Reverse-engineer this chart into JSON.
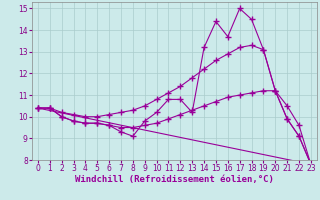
{
  "background_color": "#cceaea",
  "grid_color": "#aacccc",
  "line_color": "#990099",
  "xlim": [
    -0.5,
    23.5
  ],
  "ylim": [
    8,
    15.3
  ],
  "yticks": [
    8,
    9,
    10,
    11,
    12,
    13,
    14,
    15
  ],
  "xticks": [
    0,
    1,
    2,
    3,
    4,
    5,
    6,
    7,
    8,
    9,
    10,
    11,
    12,
    13,
    14,
    15,
    16,
    17,
    18,
    19,
    20,
    21,
    22,
    23
  ],
  "xlabel": "Windchill (Refroidissement éolien,°C)",
  "series": [
    {
      "x": [
        0,
        1,
        2,
        3,
        4,
        5,
        6,
        7,
        8,
        9,
        10,
        11,
        12,
        13,
        14,
        15,
        16,
        17,
        18,
        19,
        20,
        21,
        22,
        23
      ],
      "y": [
        10.4,
        10.4,
        10.0,
        9.8,
        9.7,
        9.7,
        9.6,
        9.3,
        9.1,
        9.8,
        10.2,
        10.8,
        10.8,
        10.2,
        13.2,
        14.4,
        13.7,
        15.0,
        14.5,
        13.1,
        11.2,
        9.9,
        9.1,
        7.8
      ]
    },
    {
      "x": [
        0,
        1,
        2,
        3,
        4,
        5,
        6,
        7,
        8,
        9,
        10,
        11,
        12,
        13,
        14,
        15,
        16,
        17,
        18,
        19,
        20,
        21,
        22,
        23
      ],
      "y": [
        10.4,
        10.4,
        10.2,
        10.1,
        10.0,
        10.0,
        10.1,
        10.2,
        10.3,
        10.5,
        10.8,
        11.1,
        11.4,
        11.8,
        12.2,
        12.6,
        12.9,
        13.2,
        13.3,
        13.1,
        11.2,
        9.9,
        9.1,
        7.8
      ]
    },
    {
      "x": [
        0,
        1,
        2,
        3,
        4,
        5,
        6,
        7,
        8,
        9,
        10,
        11,
        12,
        13,
        14,
        15,
        16,
        17,
        18,
        19,
        20,
        21,
        22,
        23
      ],
      "y": [
        10.4,
        10.4,
        10.0,
        9.8,
        9.7,
        9.7,
        9.6,
        9.5,
        9.5,
        9.6,
        9.7,
        9.9,
        10.1,
        10.3,
        10.5,
        10.7,
        10.9,
        11.0,
        11.1,
        11.2,
        11.2,
        10.5,
        9.6,
        7.8
      ]
    },
    {
      "x": [
        0,
        23
      ],
      "y": [
        10.4,
        7.8
      ]
    }
  ],
  "marker": "+",
  "markersize": 4,
  "markeredgewidth": 1.0,
  "linewidth": 0.8,
  "tick_fontsize": 5.5,
  "xlabel_fontsize": 6.5
}
